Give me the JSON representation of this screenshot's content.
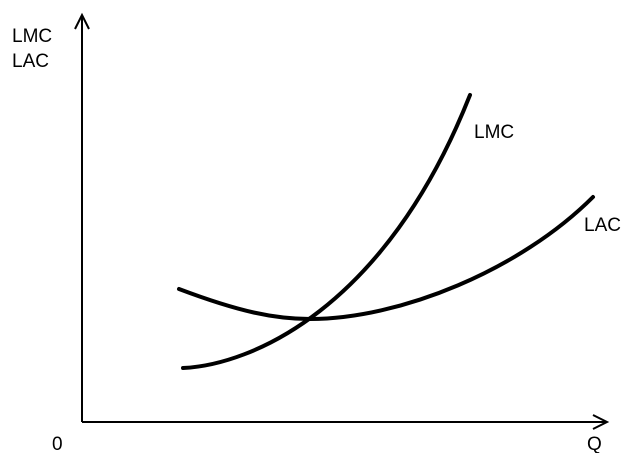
{
  "y_axis_label_line1": "LMC",
  "y_axis_label_line2": "LAC",
  "x_axis_label": "Q",
  "origin_label": "0",
  "curves": {
    "lmc_label": "LMC",
    "lac_label": "LAC"
  },
  "colors": {
    "ink": "#000000",
    "background": "#ffffff"
  }
}
